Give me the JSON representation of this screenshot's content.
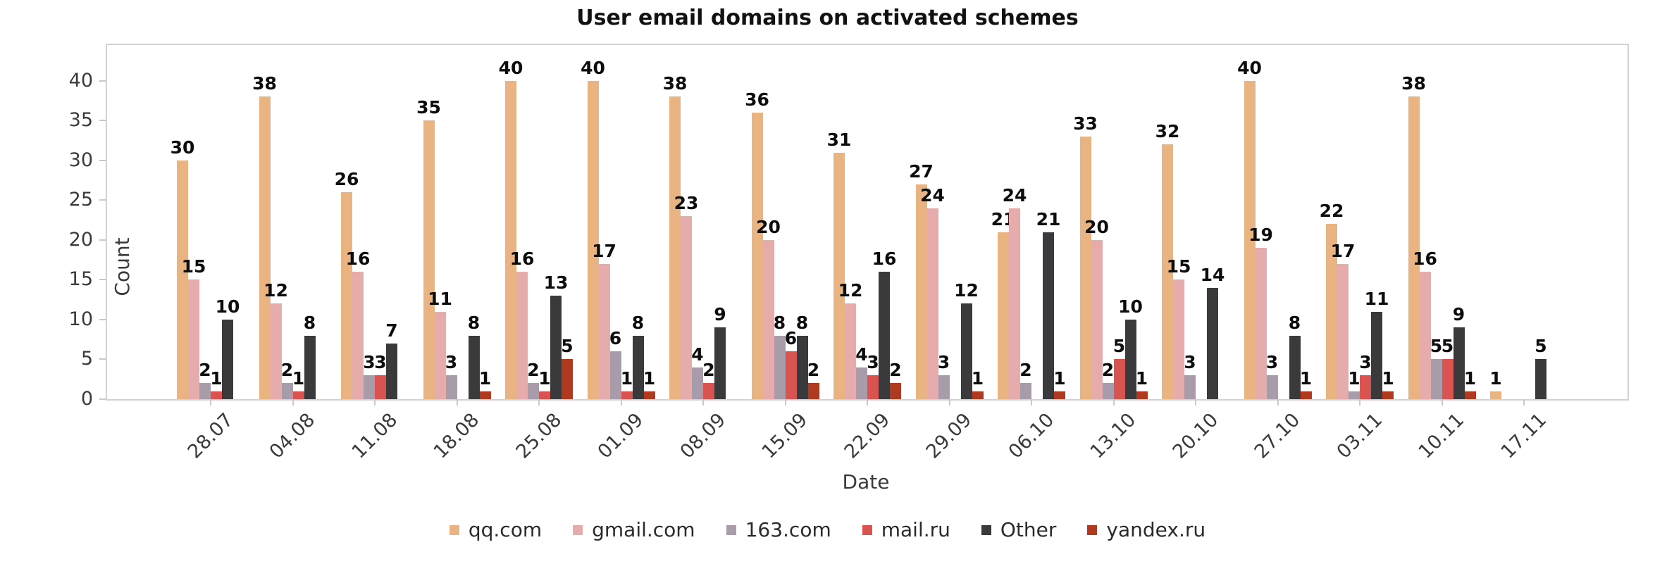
{
  "chart_data": {
    "type": "bar",
    "title": "User email domains on activated schemes",
    "xlabel": "Date",
    "ylabel": "Count",
    "categories": [
      "28.07",
      "04.08",
      "11.08",
      "18.08",
      "25.08",
      "01.09",
      "08.09",
      "15.09",
      "22.09",
      "29.09",
      "06.10",
      "13.10",
      "20.10",
      "27.10",
      "03.11",
      "10.11",
      "17.11"
    ],
    "series": [
      {
        "name": "qq.com",
        "color": "#e9b482",
        "values": [
          30,
          38,
          26,
          35,
          40,
          40,
          38,
          36,
          31,
          27,
          21,
          33,
          32,
          40,
          22,
          38,
          1
        ]
      },
      {
        "name": "gmail.com",
        "color": "#e6abab",
        "values": [
          15,
          12,
          16,
          11,
          16,
          17,
          23,
          20,
          12,
          24,
          24,
          20,
          15,
          19,
          17,
          16,
          0
        ]
      },
      {
        "name": "163.com",
        "color": "#a89baa",
        "values": [
          2,
          2,
          3,
          3,
          2,
          6,
          4,
          8,
          4,
          3,
          2,
          2,
          3,
          3,
          1,
          5,
          0
        ]
      },
      {
        "name": "mail.ru",
        "color": "#d95450",
        "values": [
          1,
          1,
          3,
          0,
          1,
          1,
          2,
          6,
          3,
          0,
          0,
          5,
          0,
          0,
          3,
          5,
          0
        ]
      },
      {
        "name": "Other",
        "color": "#3a393b",
        "values": [
          10,
          8,
          7,
          8,
          13,
          8,
          9,
          8,
          16,
          12,
          21,
          10,
          14,
          8,
          11,
          9,
          5
        ]
      },
      {
        "name": "yandex.ru",
        "color": "#b03a20",
        "values": [
          0,
          0,
          0,
          1,
          5,
          1,
          0,
          2,
          2,
          1,
          1,
          1,
          0,
          1,
          1,
          1,
          0
        ]
      }
    ],
    "yticks": [
      0,
      5,
      10,
      15,
      20,
      25,
      30,
      35,
      40
    ],
    "ylim": [
      0,
      44.5
    ],
    "grid": false,
    "bar_value_labels": true,
    "legend_position": "bottom-center"
  },
  "colors": {
    "axis_text": "#3a3a3a",
    "spine": "#d2d2d2",
    "bar_label_text": "#0d0d0d",
    "background": "#ffffff"
  }
}
